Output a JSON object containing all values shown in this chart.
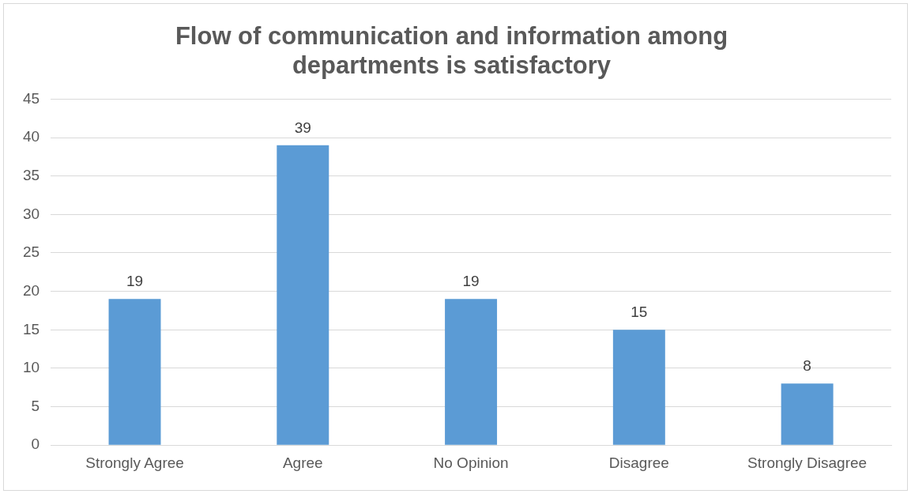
{
  "chart_data": {
    "type": "bar",
    "title": "Flow of communication and information among departments is satisfactory",
    "categories": [
      "Strongly Agree",
      "Agree",
      "No Opinion",
      "Disagree",
      "Strongly Disagree"
    ],
    "values": [
      19,
      39,
      19,
      15,
      8
    ],
    "color": "#5b9bd5",
    "ylim": [
      0,
      45
    ],
    "yticks": [
      0,
      5,
      10,
      15,
      20,
      25,
      30,
      35,
      40,
      45
    ],
    "grid": "y",
    "data_labels": true
  }
}
